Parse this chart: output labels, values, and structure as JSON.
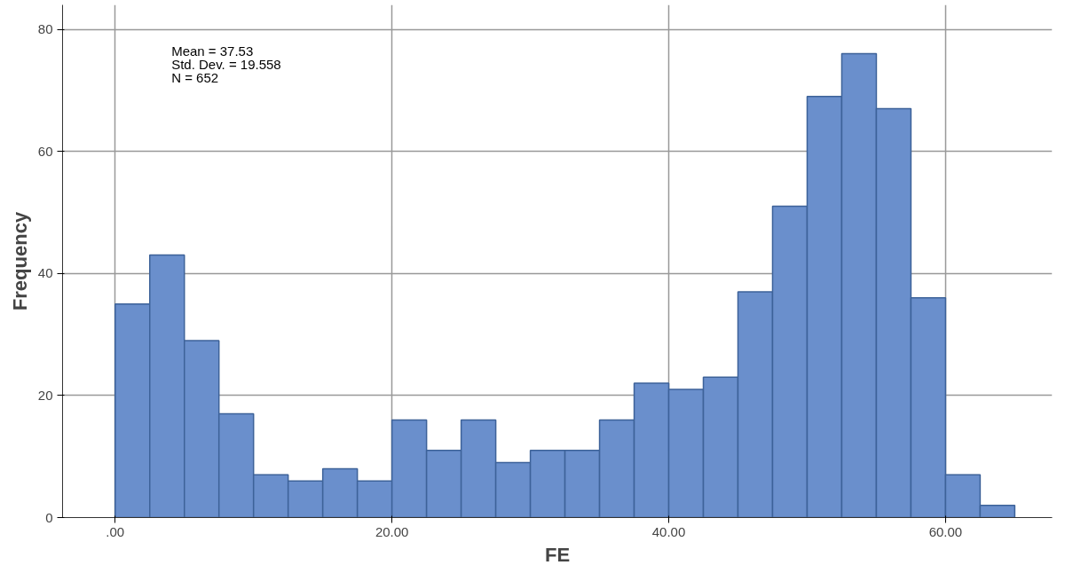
{
  "chart_data": {
    "type": "histogram",
    "xlabel": "FE",
    "ylabel": "Frequency",
    "bins": [
      0,
      2.5,
      5,
      7.5,
      10,
      12.5,
      15,
      17.5,
      20,
      22.5,
      25,
      27.5,
      30,
      32.5,
      35,
      37.5,
      40,
      42.5,
      45,
      47.5,
      50,
      52.5,
      55,
      57.5,
      60,
      62.5,
      65
    ],
    "values": [
      35,
      43,
      29,
      17,
      7,
      6,
      8,
      6,
      16,
      11,
      16,
      9,
      11,
      11,
      16,
      22,
      21,
      23,
      37,
      51,
      69,
      76,
      67,
      36,
      7,
      2
    ],
    "color": "#6a8fcc",
    "xlim": [
      -3.8,
      67.7
    ],
    "ylim": [
      0,
      84
    ],
    "xticks": [
      {
        "value": 0,
        "label": ".00"
      },
      {
        "value": 20,
        "label": "20.00"
      },
      {
        "value": 40,
        "label": "40.00"
      },
      {
        "value": 60,
        "label": "60.00"
      }
    ],
    "yticks": [
      0,
      20,
      40,
      60,
      80
    ],
    "grid": true,
    "annotations": [
      "Mean = 37.53",
      "Std. Dev. = 19.558",
      "N = 652"
    ]
  }
}
